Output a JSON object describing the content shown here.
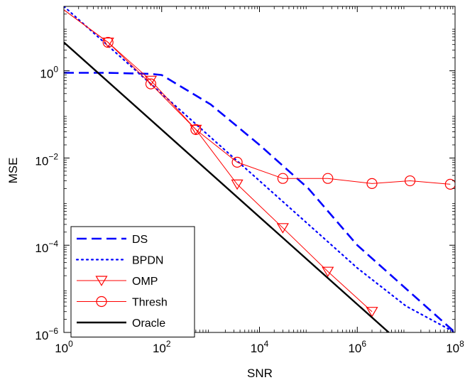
{
  "chart_data": {
    "type": "line",
    "xlabel": "SNR",
    "ylabel": "MSE",
    "xscale": "log",
    "yscale": "log",
    "xlim": [
      1,
      100000000
    ],
    "ylim": [
      1e-06,
      30
    ],
    "xticks": [
      {
        "value": 1,
        "base": "10",
        "exp": "0"
      },
      {
        "value": 100,
        "base": "10",
        "exp": "2"
      },
      {
        "value": 10000,
        "base": "10",
        "exp": "4"
      },
      {
        "value": 1000000,
        "base": "10",
        "exp": "6"
      },
      {
        "value": 100000000,
        "base": "10",
        "exp": "8"
      }
    ],
    "yticks": [
      {
        "value": 1e-06,
        "base": "10",
        "exp": "−6"
      },
      {
        "value": 0.0001,
        "base": "10",
        "exp": "−4"
      },
      {
        "value": 0.01,
        "base": "10",
        "exp": "−2"
      },
      {
        "value": 1,
        "base": "10",
        "exp": "0"
      }
    ],
    "grid": false,
    "legend_position": "bottom-left",
    "series": [
      {
        "name": "DS",
        "color": "#0000ff",
        "style": "dashed",
        "marker": "none",
        "points": [
          [
            1,
            0.9
          ],
          [
            8,
            0.9
          ],
          [
            60,
            0.85
          ],
          [
            100,
            0.8
          ],
          [
            1000,
            0.17
          ],
          [
            10000,
            0.02
          ],
          [
            100000,
            0.002
          ],
          [
            1000000,
            0.0001
          ],
          [
            10000000,
            1e-05
          ],
          [
            100000000,
            1e-06
          ]
        ]
      },
      {
        "name": "BPDN",
        "color": "#0000ff",
        "style": "dotted",
        "marker": "none",
        "points": [
          [
            1,
            30
          ],
          [
            10,
            3
          ],
          [
            100,
            0.3
          ],
          [
            1000,
            0.03
          ],
          [
            10000,
            0.003
          ],
          [
            100000,
            0.0003
          ],
          [
            1000000,
            3e-05
          ],
          [
            10000000,
            4e-06
          ],
          [
            100000000,
            1e-06
          ]
        ]
      },
      {
        "name": "OMP",
        "color": "#ff0000",
        "style": "solid",
        "marker": "triangle-down",
        "points": [
          [
            1,
            25
          ],
          [
            8,
            4.5
          ],
          [
            60,
            0.6
          ],
          [
            500,
            0.045
          ],
          [
            3500,
            0.0025
          ],
          [
            30000,
            0.00025
          ],
          [
            250000,
            2.5e-05
          ],
          [
            2000000,
            3e-06
          ]
        ]
      },
      {
        "name": "Thresh",
        "color": "#ff0000",
        "style": "solid",
        "marker": "circle",
        "points": [
          [
            1,
            25
          ],
          [
            8,
            4.5
          ],
          [
            60,
            0.5
          ],
          [
            500,
            0.045
          ],
          [
            3500,
            0.008
          ],
          [
            30000,
            0.0034
          ],
          [
            250000,
            0.0034
          ],
          [
            2000000,
            0.0026
          ],
          [
            12000000,
            0.003
          ],
          [
            80000000,
            0.0025
          ]
        ]
      },
      {
        "name": "Oracle",
        "color": "#000000",
        "style": "solid",
        "marker": "none",
        "points": [
          [
            1,
            4.5
          ],
          [
            4400000,
            1e-06
          ]
        ]
      }
    ]
  }
}
